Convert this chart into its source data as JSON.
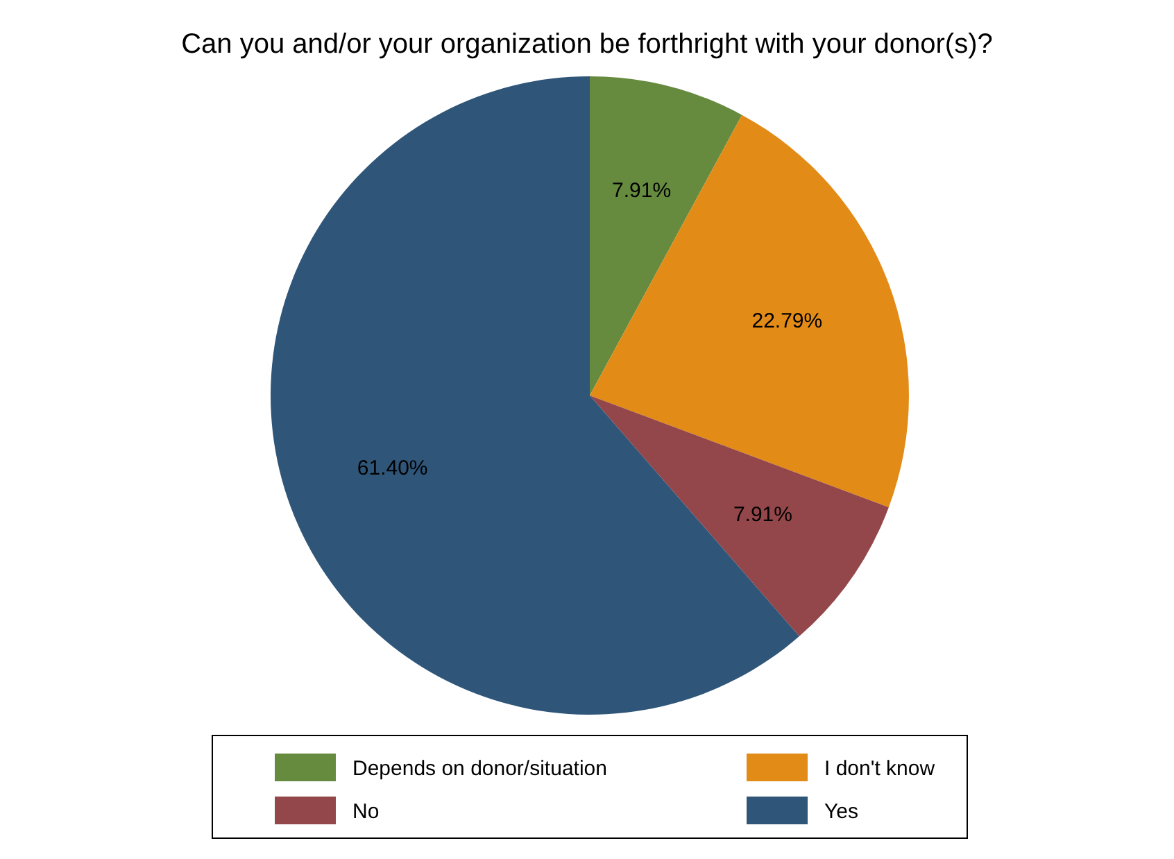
{
  "chart_data": {
    "type": "pie",
    "title": "Can you and/or your organization be forthright with your donor(s)?",
    "categories": [
      "Depends on donor/situation",
      "I don't know",
      "No",
      "Yes"
    ],
    "values": [
      7.91,
      22.79,
      7.91,
      61.4
    ],
    "colors": [
      "#668b3f",
      "#e38b17",
      "#94474a",
      "#2f5578"
    ],
    "value_labels": [
      "7.91%",
      "22.79%",
      "7.91%",
      "61.40%"
    ],
    "legend": "bottom"
  }
}
